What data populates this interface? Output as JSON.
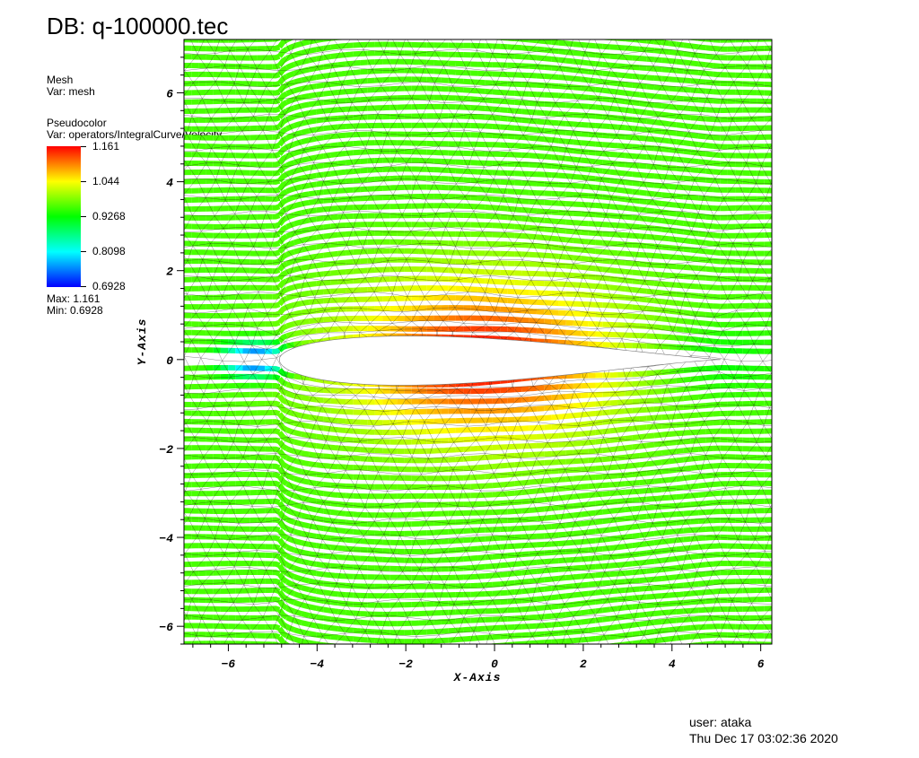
{
  "header": {
    "db_title": "DB: q-100000.tec"
  },
  "legend": {
    "mesh_label": "Mesh",
    "mesh_var": "Var: mesh",
    "pseudocolor_label": "Pseudocolor",
    "pseudocolor_var": "Var: operators/IntegralCurve/Velocity",
    "ticks": [
      "1.161",
      "1.044",
      "0.9268",
      "0.8098",
      "0.6928"
    ],
    "max_label": "Max:  1.161",
    "min_label": "Min:  0.6928",
    "colors": [
      "#ff0000",
      "#ff8000",
      "#ffff00",
      "#80ff00",
      "#00ff00",
      "#00ff80",
      "#00ffff",
      "#0080ff",
      "#0000ff"
    ]
  },
  "chart_data": {
    "type": "streamline",
    "title": "DB: q-100000.tec",
    "xlabel": "X-Axis",
    "ylabel": "Y-Axis",
    "xlim": [
      -7.0,
      6.25
    ],
    "ylim": [
      -6.4,
      7.2
    ],
    "xticks": [
      -6,
      -4,
      -2,
      0,
      2,
      4,
      6
    ],
    "yticks": [
      -6,
      -4,
      -2,
      0,
      2,
      4,
      6
    ],
    "xtick_labels": [
      "−6",
      "−4",
      "−2",
      "0",
      "2",
      "4",
      "6"
    ],
    "ytick_labels": [
      "−6",
      "−4",
      "−2",
      "0",
      "2",
      "4",
      "6"
    ],
    "variable": "operators/IntegralCurve/Velocity",
    "value_range": [
      0.6928,
      1.161
    ],
    "freestream_value": 0.96,
    "airfoil": {
      "leading_edge": [
        -4.85,
        0.0
      ],
      "trailing_edge": [
        5.1,
        0.0
      ],
      "max_upper_y": 0.72,
      "min_lower_y": -0.76
    },
    "streamline_spacing": 0.2
  },
  "footer": {
    "user": "user: ataka",
    "date": "Thu Dec 17 03:02:36 2020"
  }
}
